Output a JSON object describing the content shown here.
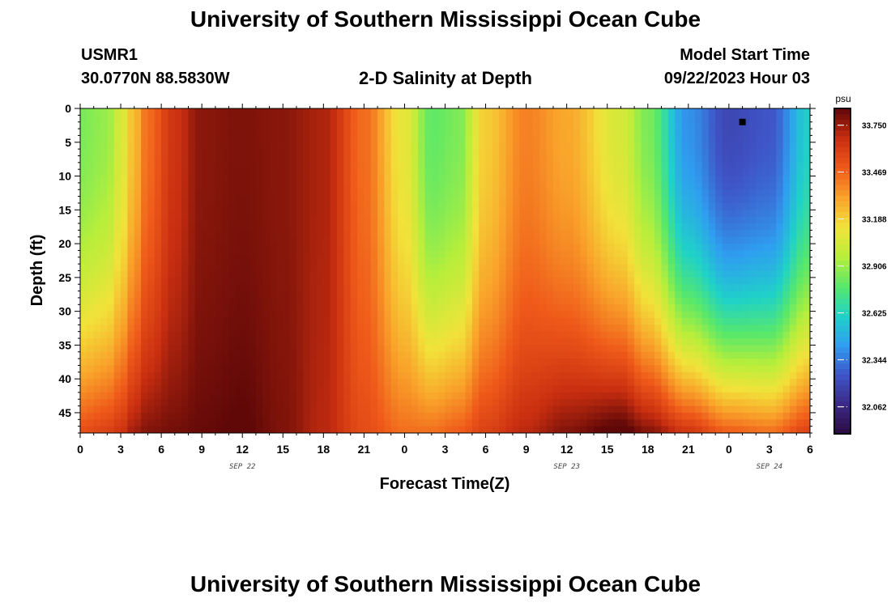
{
  "header": {
    "title": "University of Southern Mississippi Ocean Cube",
    "station_id": "USMR1",
    "station_coords": "30.0770N  88.5830W",
    "plot_title": "2-D Salinity at Depth",
    "start_label": "Model Start Time",
    "start_value": "09/22/2023 Hour 03",
    "footer_title": "University of Southern Mississippi Ocean Cube"
  },
  "chart_data": {
    "type": "heatmap",
    "title": "2-D Salinity at Depth",
    "xlabel": "Forecast Time(Z)",
    "ylabel": "Depth (ft)",
    "x_range_hours": [
      0,
      54
    ],
    "x_tick_labels": [
      "0",
      "3",
      "6",
      "9",
      "12",
      "15",
      "18",
      "21",
      "0",
      "3",
      "6",
      "9",
      "12",
      "15",
      "18",
      "21",
      "0",
      "3",
      "6"
    ],
    "date_labels": [
      {
        "text": "SEP 22",
        "at_hour": 12
      },
      {
        "text": "SEP 23",
        "at_hour": 36
      },
      {
        "text": "SEP 24",
        "at_hour": 51
      }
    ],
    "y_range": [
      0,
      48
    ],
    "y_ticks": [
      0,
      5,
      10,
      15,
      20,
      25,
      30,
      35,
      40,
      45
    ],
    "y_inverted": true,
    "colorbar": {
      "units": "psu",
      "min": 31.9,
      "max": 33.85,
      "ticks": [
        "33.750",
        "33.469",
        "33.188",
        "32.906",
        "32.625",
        "32.344",
        "32.062"
      ],
      "colors": [
        "#2a0a3e",
        "#3b2a86",
        "#3f55c8",
        "#2f9ef0",
        "#1fd2c8",
        "#58e86a",
        "#b9ee3a",
        "#f2e23a",
        "#f9a22a",
        "#ef5a1a",
        "#c82e10",
        "#600808"
      ]
    },
    "marker": {
      "x_hour": 49,
      "depth": 2
    },
    "salinity_profile": [
      {
        "hour": 0,
        "surface": 32.85,
        "bottom": 33.55
      },
      {
        "hour": 2,
        "surface": 32.9,
        "bottom": 33.6
      },
      {
        "hour": 3,
        "surface": 33.05,
        "bottom": 33.65
      },
      {
        "hour": 4,
        "surface": 33.25,
        "bottom": 33.75
      },
      {
        "hour": 5,
        "surface": 33.45,
        "bottom": 33.8
      },
      {
        "hour": 7,
        "surface": 33.65,
        "bottom": 33.82
      },
      {
        "hour": 9,
        "surface": 33.78,
        "bottom": 33.84
      },
      {
        "hour": 12,
        "surface": 33.8,
        "bottom": 33.86
      },
      {
        "hour": 15,
        "surface": 33.78,
        "bottom": 33.8
      },
      {
        "hour": 18,
        "surface": 33.72,
        "bottom": 33.7
      },
      {
        "hour": 21,
        "surface": 33.45,
        "bottom": 33.55
      },
      {
        "hour": 24,
        "surface": 33.1,
        "bottom": 33.45
      },
      {
        "hour": 26,
        "surface": 32.8,
        "bottom": 33.45
      },
      {
        "hour": 28,
        "surface": 32.85,
        "bottom": 33.5
      },
      {
        "hour": 30,
        "surface": 33.2,
        "bottom": 33.6
      },
      {
        "hour": 33,
        "surface": 33.4,
        "bottom": 33.7
      },
      {
        "hour": 36,
        "surface": 33.3,
        "bottom": 33.8
      },
      {
        "hour": 40,
        "surface": 33.05,
        "bottom": 33.9
      },
      {
        "hour": 42,
        "surface": 32.85,
        "bottom": 33.8
      },
      {
        "hour": 45,
        "surface": 32.4,
        "bottom": 33.65
      },
      {
        "hour": 48,
        "surface": 32.2,
        "bottom": 33.5
      },
      {
        "hour": 51,
        "surface": 32.25,
        "bottom": 33.45
      },
      {
        "hour": 54,
        "surface": 32.6,
        "bottom": 33.6
      }
    ]
  }
}
